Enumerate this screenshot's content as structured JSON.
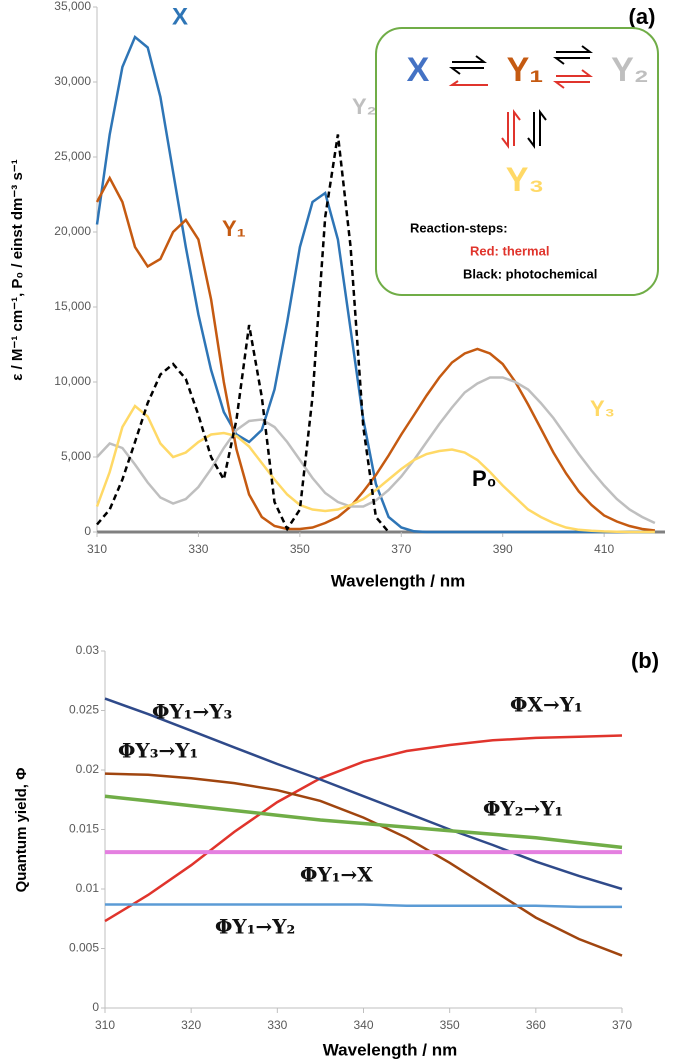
{
  "chart_data": [
    {
      "type": "line",
      "panel": "(a)",
      "x_label": "Wavelength  / nm",
      "y_label": "ε / M⁻¹ cm⁻¹, P₀ / einst dm⁻³ s⁻¹",
      "xlim": [
        310,
        422
      ],
      "xticks": [
        310,
        330,
        350,
        370,
        390,
        410
      ],
      "ylim": [
        0,
        35000
      ],
      "yticks": [
        0,
        {
          "value": 5000,
          "label": "5,000"
        },
        {
          "value": 10000,
          "label": "10,000"
        },
        {
          "value": 15000,
          "label": "15,000"
        },
        {
          "value": 20000,
          "label": "20,000"
        },
        {
          "value": 25000,
          "label": "25,000"
        },
        {
          "value": 30000,
          "label": "30,000"
        },
        {
          "value": 35000,
          "label": "35,000"
        }
      ],
      "x": [
        310,
        312.5,
        315,
        317.5,
        320,
        322.5,
        325,
        327.5,
        330,
        332.5,
        335,
        337.5,
        340,
        342.5,
        345,
        347.5,
        350,
        352.5,
        355,
        357.5,
        360,
        362.5,
        365,
        367.5,
        370,
        372.5,
        375,
        377.5,
        380,
        382.5,
        385,
        387.5,
        390,
        392.5,
        395,
        397.5,
        400,
        402.5,
        405,
        407.5,
        410,
        412.5,
        415,
        417.5,
        420
      ],
      "series": [
        {
          "name": "X",
          "color": "#2e75b6",
          "values": [
            20500,
            26500,
            31000,
            33000,
            32300,
            29000,
            24000,
            19000,
            14500,
            10800,
            8000,
            6500,
            6000,
            6800,
            9500,
            14000,
            19000,
            22000,
            22600,
            19500,
            13500,
            7500,
            3200,
            1000,
            300,
            50,
            0,
            0,
            0,
            0,
            0,
            0,
            0,
            0,
            0,
            0,
            0,
            0,
            0,
            0,
            0,
            0,
            0,
            0,
            0
          ]
        },
        {
          "name": "Y₁",
          "color": "#c55a11",
          "values": [
            22000,
            23600,
            22000,
            19000,
            17700,
            18200,
            20000,
            20800,
            19500,
            15500,
            10000,
            5500,
            2500,
            1000,
            400,
            200,
            200,
            300,
            600,
            1000,
            1700,
            2700,
            3800,
            5100,
            6500,
            7800,
            9100,
            10300,
            11300,
            11900,
            12200,
            11900,
            11200,
            10000,
            8500,
            6900,
            5300,
            3900,
            2700,
            1800,
            1100,
            700,
            400,
            200,
            100
          ]
        },
        {
          "name": "Y₂",
          "color": "#bfbfbf",
          "values": [
            5000,
            5900,
            5600,
            4500,
            3300,
            2300,
            1900,
            2200,
            3000,
            4200,
            5600,
            6800,
            7400,
            7500,
            7000,
            6000,
            4800,
            3600,
            2600,
            2000,
            1700,
            1700,
            2100,
            2800,
            3700,
            4800,
            6000,
            7200,
            8300,
            9300,
            9900,
            10300,
            10300,
            10000,
            9500,
            8600,
            7600,
            6400,
            5200,
            4100,
            3100,
            2200,
            1500,
            1000,
            600
          ]
        },
        {
          "name": "Y₃",
          "color": "#ffd966",
          "values": [
            1700,
            4000,
            7000,
            8400,
            7700,
            5900,
            5000,
            5300,
            6000,
            6500,
            6600,
            6400,
            5700,
            4600,
            3500,
            2500,
            1800,
            1500,
            1400,
            1500,
            1800,
            2200,
            2800,
            3500,
            4200,
            4800,
            5200,
            5400,
            5500,
            5300,
            4800,
            4000,
            3100,
            2300,
            1500,
            1000,
            600,
            300,
            150,
            80,
            40,
            20,
            0,
            0,
            0
          ]
        },
        {
          "name": "P₀",
          "color": "#000000",
          "dashed": true,
          "values": [
            500,
            1500,
            3500,
            6000,
            8600,
            10500,
            11200,
            10200,
            7800,
            5000,
            3500,
            7500,
            13800,
            9000,
            2000,
            200,
            1500,
            9000,
            21000,
            26500,
            19000,
            7000,
            1000,
            0,
            null,
            null,
            null,
            null,
            null,
            null,
            null,
            null,
            null,
            null,
            null,
            null,
            null,
            null,
            null,
            null,
            null,
            null,
            null,
            null,
            null
          ]
        }
      ],
      "inset": {
        "species": [
          "X",
          "Y₁",
          "Y₂",
          "Y₃"
        ],
        "title": "Reaction-steps:",
        "notes": [
          "Red: thermal",
          "Black: photochemical"
        ]
      }
    },
    {
      "type": "line",
      "panel": "(b)",
      "x_label": "Wavelength  / nm",
      "y_label": "Quantum yield,  Φ",
      "xlim": [
        310,
        370
      ],
      "xticks": [
        310,
        320,
        330,
        340,
        350,
        360,
        370
      ],
      "ylim": [
        0,
        0.03
      ],
      "yticks": [
        0,
        0.005,
        0.01,
        0.015,
        0.02,
        0.025,
        0.03
      ],
      "x": [
        310,
        315,
        320,
        325,
        330,
        335,
        340,
        345,
        350,
        355,
        360,
        365,
        370
      ],
      "series": [
        {
          "name": "ΦX→Y₁",
          "color": "#e0342c",
          "values": [
            0.0073,
            0.0095,
            0.012,
            0.0148,
            0.0173,
            0.0193,
            0.0207,
            0.0216,
            0.0221,
            0.0225,
            0.0227,
            0.0228,
            0.0229
          ]
        },
        {
          "name": "ΦY₁→Y₃",
          "color": "#2f4a8a",
          "values": [
            0.026,
            0.0247,
            0.0233,
            0.0219,
            0.0205,
            0.0192,
            0.0178,
            0.0164,
            0.015,
            0.0137,
            0.0123,
            0.0111,
            0.01
          ]
        },
        {
          "name": "ΦY₃→Y₁",
          "color": "#a0450f",
          "values": [
            0.0197,
            0.0196,
            0.0193,
            0.0189,
            0.0183,
            0.0174,
            0.016,
            0.0143,
            0.0122,
            0.0099,
            0.0076,
            0.0058,
            0.0044
          ]
        },
        {
          "name": "ΦY₂→Y₁",
          "color": "#70ad47",
          "width": 3.5,
          "values": [
            0.0178,
            0.0174,
            0.017,
            0.0166,
            0.0162,
            0.0158,
            0.0155,
            0.0152,
            0.0149,
            0.0146,
            0.0143,
            0.0139,
            0.0135
          ]
        },
        {
          "name": "ΦY₁→X",
          "color": "#e47fe0",
          "width": 4,
          "values": [
            0.0131,
            0.0131,
            0.0131,
            0.0131,
            0.0131,
            0.0131,
            0.0131,
            0.0131,
            0.0131,
            0.0131,
            0.0131,
            0.0131,
            0.0131
          ]
        },
        {
          "name": "ΦY₁→Y₂",
          "color": "#5b9bd5",
          "values": [
            0.0087,
            0.0087,
            0.0087,
            0.0087,
            0.0087,
            0.0087,
            0.0087,
            0.0086,
            0.0086,
            0.0086,
            0.0086,
            0.0085,
            0.0085
          ]
        }
      ]
    }
  ]
}
